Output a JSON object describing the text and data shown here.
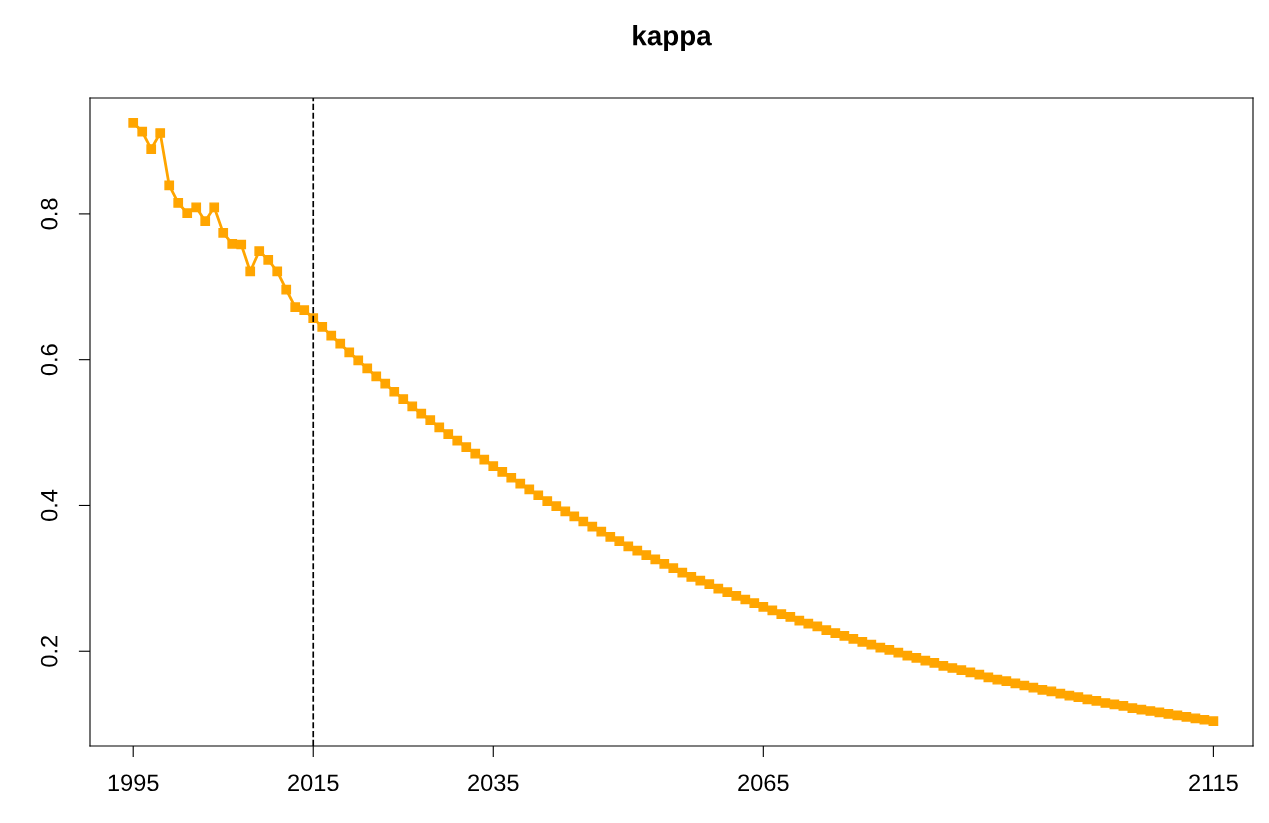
{
  "chart_data": {
    "type": "line",
    "title": "kappa",
    "x": [
      1995,
      1996,
      1997,
      1998,
      1999,
      2000,
      2001,
      2002,
      2003,
      2004,
      2005,
      2006,
      2007,
      2008,
      2009,
      2010,
      2011,
      2012,
      2013,
      2014,
      2015,
      2016,
      2017,
      2018,
      2019,
      2020,
      2021,
      2022,
      2023,
      2024,
      2025,
      2026,
      2027,
      2028,
      2029,
      2030,
      2031,
      2032,
      2033,
      2034,
      2035,
      2036,
      2037,
      2038,
      2039,
      2040,
      2041,
      2042,
      2043,
      2044,
      2045,
      2046,
      2047,
      2048,
      2049,
      2050,
      2051,
      2052,
      2053,
      2054,
      2055,
      2056,
      2057,
      2058,
      2059,
      2060,
      2061,
      2062,
      2063,
      2064,
      2065,
      2066,
      2067,
      2068,
      2069,
      2070,
      2071,
      2072,
      2073,
      2074,
      2075,
      2076,
      2077,
      2078,
      2079,
      2080,
      2081,
      2082,
      2083,
      2084,
      2085,
      2086,
      2087,
      2088,
      2089,
      2090,
      2091,
      2092,
      2093,
      2094,
      2095,
      2096,
      2097,
      2098,
      2099,
      2100,
      2101,
      2102,
      2103,
      2104,
      2105,
      2106,
      2107,
      2108,
      2109,
      2110,
      2111,
      2112,
      2113,
      2114,
      2115
    ],
    "series": [
      {
        "color": "#ffa500",
        "values": [
          0.925,
          0.913,
          0.889,
          0.911,
          0.839,
          0.815,
          0.801,
          0.809,
          0.79,
          0.809,
          0.774,
          0.759,
          0.758,
          0.721,
          0.749,
          0.737,
          0.721,
          0.696,
          0.672,
          0.668,
          0.657,
          0.645,
          0.633,
          0.622,
          0.61,
          0.599,
          0.588,
          0.577,
          0.567,
          0.556,
          0.546,
          0.536,
          0.526,
          0.517,
          0.507,
          0.498,
          0.489,
          0.48,
          0.471,
          0.463,
          0.454,
          0.446,
          0.438,
          0.43,
          0.422,
          0.414,
          0.406,
          0.399,
          0.392,
          0.385,
          0.378,
          0.371,
          0.364,
          0.357,
          0.351,
          0.344,
          0.338,
          0.332,
          0.326,
          0.32,
          0.314,
          0.308,
          0.302,
          0.297,
          0.292,
          0.286,
          0.281,
          0.276,
          0.271,
          0.266,
          0.261,
          0.256,
          0.251,
          0.247,
          0.242,
          0.238,
          0.234,
          0.229,
          0.225,
          0.221,
          0.217,
          0.213,
          0.209,
          0.205,
          0.202,
          0.198,
          0.194,
          0.191,
          0.187,
          0.184,
          0.18,
          0.177,
          0.174,
          0.171,
          0.168,
          0.164,
          0.161,
          0.159,
          0.156,
          0.153,
          0.15,
          0.147,
          0.145,
          0.142,
          0.139,
          0.137,
          0.134,
          0.132,
          0.129,
          0.127,
          0.125,
          0.122,
          0.12,
          0.118,
          0.116,
          0.114,
          0.112,
          0.11,
          0.108,
          0.106,
          0.104
        ]
      }
    ],
    "xlim": [
      1990.2,
      2119.4
    ],
    "ylim": [
      0.07,
      0.959
    ],
    "xticks": [
      1995,
      2015,
      2035,
      2065,
      2115
    ],
    "yticks": [
      0.2,
      0.4,
      0.6,
      0.8
    ],
    "ref_lines": [
      {
        "axis": "x",
        "value": 2015,
        "color": "#000000",
        "line_style": "dashed"
      }
    ],
    "marker": "square",
    "line_style": "solid",
    "grid": false,
    "legend": false
  }
}
